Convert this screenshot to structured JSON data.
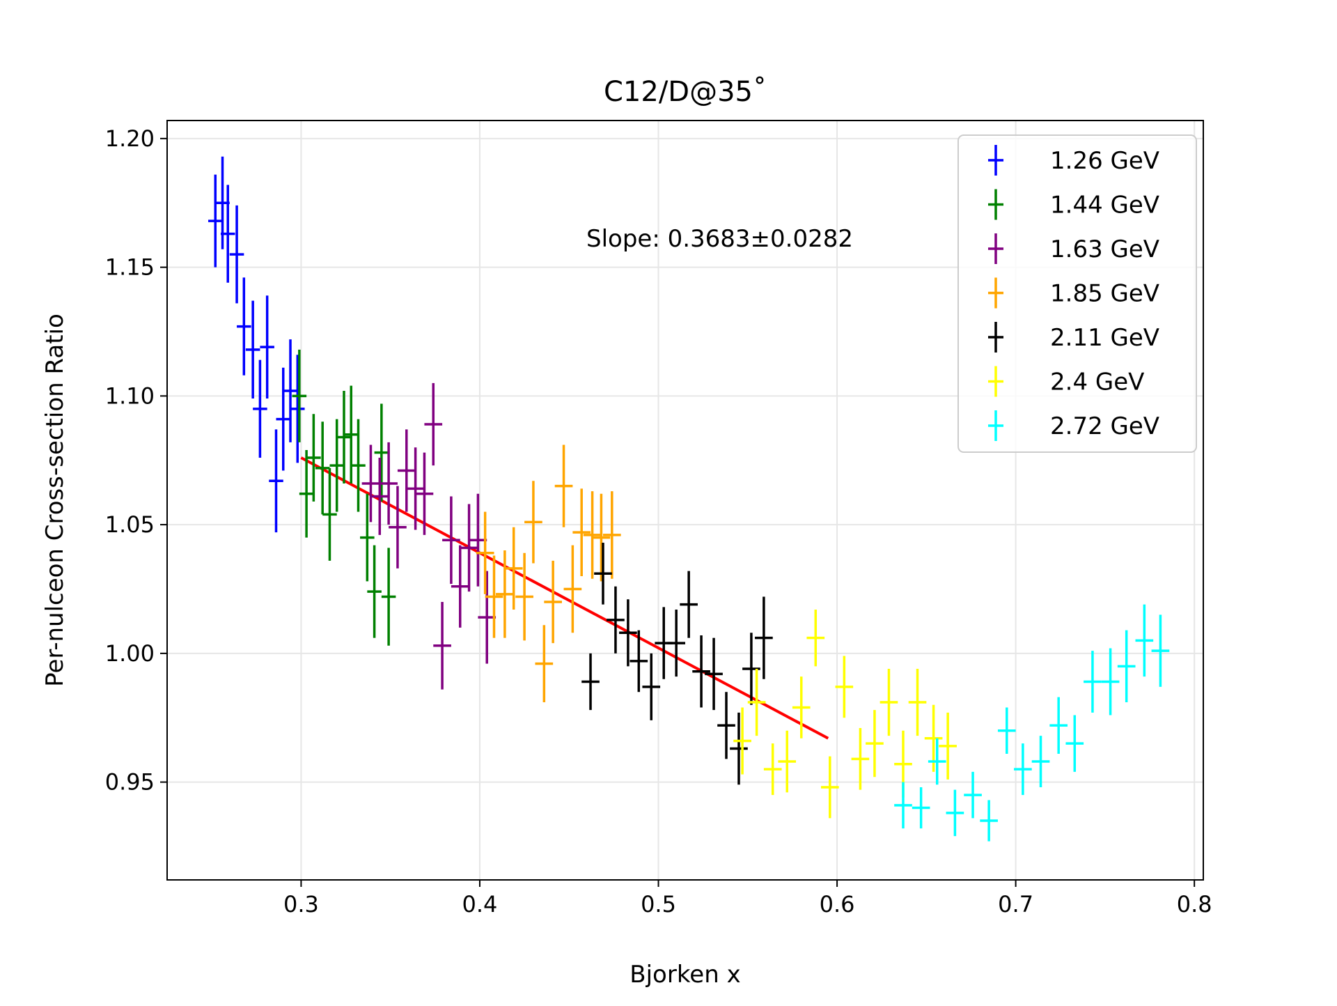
{
  "chart_data": {
    "type": "scatter",
    "title": "C12/D@35˚",
    "xlabel": "Bjorken x",
    "ylabel": "Per-nulceon Cross-section Ratio",
    "xlim": [
      0.225,
      0.805
    ],
    "ylim": [
      0.912,
      1.207
    ],
    "xticks": [
      "0.3",
      "0.4",
      "0.5",
      "0.6",
      "0.7",
      "0.8"
    ],
    "yticks": [
      "0.95",
      "1.00",
      "1.05",
      "1.10",
      "1.15",
      "1.20"
    ],
    "grid": true,
    "legend_position": "top-right",
    "annotation": "Slope: 0.3683±0.0282",
    "fit_line": {
      "color": "#ff0000",
      "x": [
        0.3,
        0.595
      ],
      "y": [
        1.076,
        0.967
      ]
    },
    "series": [
      {
        "name": "1.26 GeV",
        "color": "#0000ff",
        "x": [
          0.252,
          0.256,
          0.259,
          0.264,
          0.268,
          0.273,
          0.277,
          0.281,
          0.286,
          0.29,
          0.294,
          0.298
        ],
        "y": [
          1.168,
          1.175,
          1.163,
          1.155,
          1.127,
          1.118,
          1.095,
          1.119,
          1.067,
          1.091,
          1.102,
          1.095
        ],
        "err": [
          0.018,
          0.018,
          0.019,
          0.019,
          0.019,
          0.019,
          0.019,
          0.02,
          0.02,
          0.02,
          0.02,
          0.021
        ],
        "xerr": 0.004
      },
      {
        "name": "1.44 GeV",
        "color": "#008000",
        "x": [
          0.299,
          0.303,
          0.307,
          0.312,
          0.316,
          0.32,
          0.324,
          0.328,
          0.332,
          0.337,
          0.341,
          0.345,
          0.349
        ],
        "y": [
          1.1,
          1.062,
          1.076,
          1.072,
          1.054,
          1.073,
          1.084,
          1.085,
          1.073,
          1.045,
          1.024,
          1.078,
          1.022
        ],
        "err": [
          0.018,
          0.017,
          0.017,
          0.018,
          0.018,
          0.018,
          0.018,
          0.019,
          0.018,
          0.017,
          0.018,
          0.019,
          0.019
        ],
        "xerr": 0.004
      },
      {
        "name": "1.63 GeV",
        "color": "#800080",
        "x": [
          0.339,
          0.344,
          0.349,
          0.354,
          0.359,
          0.364,
          0.369,
          0.374,
          0.379,
          0.384,
          0.389,
          0.394,
          0.399,
          0.404
        ],
        "y": [
          1.066,
          1.061,
          1.066,
          1.049,
          1.071,
          1.064,
          1.062,
          1.089,
          1.003,
          1.044,
          1.026,
          1.041,
          1.044,
          1.014
        ],
        "err": [
          0.015,
          0.015,
          0.016,
          0.016,
          0.016,
          0.016,
          0.016,
          0.016,
          0.017,
          0.017,
          0.016,
          0.017,
          0.018,
          0.018
        ],
        "xerr": 0.005
      },
      {
        "name": "1.85 GeV",
        "color": "#ffa500",
        "x": [
          0.403,
          0.408,
          0.414,
          0.419,
          0.425,
          0.43,
          0.436,
          0.441,
          0.447,
          0.452,
          0.457,
          0.463,
          0.468,
          0.474
        ],
        "y": [
          1.039,
          1.022,
          1.023,
          1.033,
          1.022,
          1.051,
          0.996,
          1.02,
          1.065,
          1.025,
          1.047,
          1.046,
          1.045,
          1.046
        ],
        "err": [
          0.016,
          0.016,
          0.017,
          0.016,
          0.017,
          0.016,
          0.015,
          0.016,
          0.016,
          0.017,
          0.017,
          0.017,
          0.017,
          0.017
        ],
        "xerr": 0.005
      },
      {
        "name": "2.11 GeV",
        "color": "#000000",
        "x": [
          0.462,
          0.469,
          0.476,
          0.483,
          0.489,
          0.496,
          0.503,
          0.51,
          0.517,
          0.524,
          0.531,
          0.538,
          0.545,
          0.552,
          0.559
        ],
        "y": [
          0.989,
          1.031,
          1.013,
          1.008,
          0.997,
          0.987,
          1.004,
          1.004,
          1.019,
          0.993,
          0.992,
          0.972,
          0.963,
          0.994,
          1.006
        ],
        "err": [
          0.011,
          0.012,
          0.013,
          0.013,
          0.012,
          0.013,
          0.014,
          0.013,
          0.013,
          0.014,
          0.014,
          0.013,
          0.014,
          0.014,
          0.016
        ],
        "xerr": 0.005
      },
      {
        "name": "2.4 GeV",
        "color": "#ffff00",
        "x": [
          0.547,
          0.555,
          0.564,
          0.572,
          0.58,
          0.588,
          0.596,
          0.604,
          0.613,
          0.621,
          0.629,
          0.637,
          0.645,
          0.654,
          0.662
        ],
        "y": [
          0.966,
          0.981,
          0.955,
          0.958,
          0.979,
          1.006,
          0.948,
          0.987,
          0.959,
          0.965,
          0.981,
          0.957,
          0.981,
          0.967,
          0.964
        ],
        "err": [
          0.013,
          0.013,
          0.01,
          0.012,
          0.012,
          0.011,
          0.012,
          0.012,
          0.012,
          0.013,
          0.013,
          0.013,
          0.013,
          0.013,
          0.013
        ],
        "xerr": 0.005
      },
      {
        "name": "2.72 GeV",
        "color": "#00ffff",
        "x": [
          0.637,
          0.647,
          0.656,
          0.666,
          0.676,
          0.685,
          0.695,
          0.704,
          0.714,
          0.724,
          0.733,
          0.743,
          0.753,
          0.762,
          0.772,
          0.781
        ],
        "y": [
          0.941,
          0.94,
          0.958,
          0.938,
          0.945,
          0.935,
          0.97,
          0.955,
          0.958,
          0.972,
          0.965,
          0.989,
          0.989,
          0.995,
          1.005,
          1.001
        ],
        "err": [
          0.009,
          0.008,
          0.009,
          0.009,
          0.009,
          0.008,
          0.009,
          0.01,
          0.01,
          0.011,
          0.011,
          0.012,
          0.013,
          0.014,
          0.014,
          0.014
        ],
        "xerr": 0.005
      }
    ]
  }
}
